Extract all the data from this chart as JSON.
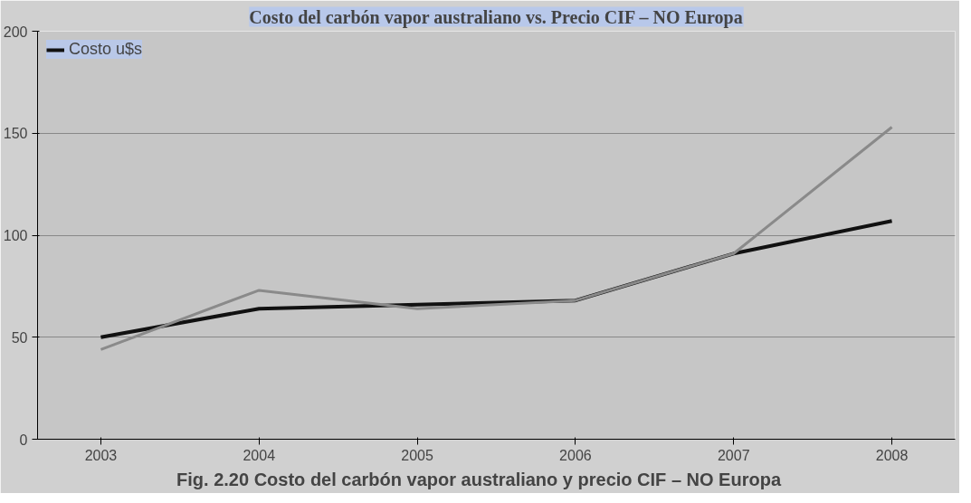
{
  "chart_data": {
    "type": "line",
    "title": "Costo del carbón vapor australiano vs. Precio CIF – NO Europa",
    "categories": [
      "2003",
      "2004",
      "2005",
      "2006",
      "2007",
      "2008"
    ],
    "series": [
      {
        "name": "Costo u$s",
        "color": "#111111",
        "values": [
          50,
          64,
          66,
          68,
          91,
          107
        ]
      },
      {
        "color": "#8a8a8a",
        "values": [
          44,
          73,
          64,
          68,
          91,
          153
        ]
      }
    ],
    "ylim": [
      0,
      200
    ],
    "yticks": [
      0,
      50,
      100,
      150,
      200
    ],
    "grid": "y",
    "legend": "top left",
    "annotations": [
      "Fig. 2.20        Costo del carbón vapor australiano y precio CIF – NO Europa"
    ]
  }
}
